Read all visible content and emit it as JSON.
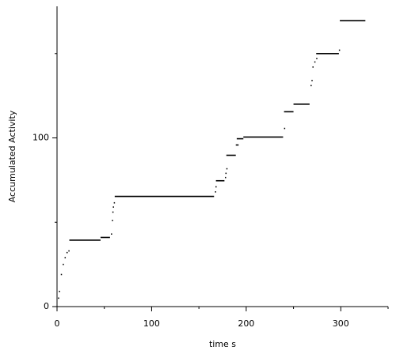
{
  "chart_data": {
    "type": "line",
    "xlabel": "time s",
    "ylabel": "Accumulated Activity",
    "x": [
      1,
      null,
      2,
      null,
      4,
      null,
      6,
      null,
      8,
      null,
      10,
      null,
      12,
      null,
      13,
      46,
      null,
      46,
      56,
      null,
      57,
      null,
      58,
      null,
      58.5,
      null,
      59,
      null,
      60,
      null,
      61,
      166,
      null,
      167,
      null,
      167.5,
      null,
      168,
      177,
      null,
      177.5,
      null,
      178,
      null,
      179,
      null,
      179,
      189,
      null,
      189,
      192,
      null,
      190,
      197,
      null,
      197,
      239,
      null,
      240,
      null,
      240,
      250,
      null,
      250,
      267,
      null,
      268,
      null,
      269,
      null,
      270,
      null,
      272,
      null,
      274,
      null,
      274,
      298,
      null,
      298,
      null,
      299,
      326
    ],
    "series": [
      {
        "color": "#000000",
        "values": [
          5,
          null,
          9,
          null,
          19,
          null,
          25,
          null,
          29,
          null,
          32,
          null,
          33,
          null,
          39.4,
          39.4,
          null,
          41,
          41,
          null,
          43,
          null,
          51,
          null,
          56,
          null,
          59,
          null,
          61.5,
          null,
          65.3,
          65.3,
          null,
          68,
          null,
          71,
          null,
          74.6,
          74.6,
          null,
          76.5,
          null,
          79,
          null,
          81.7,
          null,
          89.7,
          89.7,
          null,
          95.8,
          95.8,
          null,
          99.5,
          99.5,
          null,
          100.5,
          100.5,
          null,
          105.6,
          null,
          115.5,
          115.5,
          null,
          120,
          120,
          null,
          131,
          null,
          134,
          null,
          142,
          null,
          145,
          null,
          147,
          null,
          150,
          150,
          null,
          152,
          null,
          169.5,
          169.5
        ]
      }
    ],
    "xlim": [
      0,
      350
    ],
    "ylim": [
      0,
      178
    ],
    "xticks": [
      0,
      100,
      200,
      300
    ],
    "yticks": [
      0,
      100
    ],
    "xminor_ticks": [
      50,
      150,
      250,
      350
    ],
    "yminor_ticks": [
      50,
      150
    ]
  }
}
